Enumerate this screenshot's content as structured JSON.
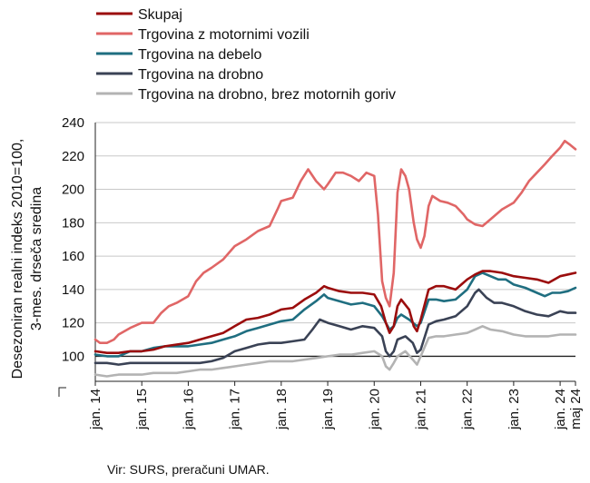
{
  "chart_data": {
    "type": "line",
    "ylabel_lines": [
      "Desezoniran realni indeks 2010=100,",
      "3-mes. drseča sredina"
    ],
    "ylim": [
      85,
      240
    ],
    "yticks": [
      100,
      120,
      140,
      160,
      180,
      200,
      220,
      240
    ],
    "xlim": [
      2014,
      2024.33
    ],
    "xticks": [
      {
        "x": 2014,
        "label": "jan. 14"
      },
      {
        "x": 2015,
        "label": "jan. 15"
      },
      {
        "x": 2016,
        "label": "jan. 16"
      },
      {
        "x": 2017,
        "label": "jan. 17"
      },
      {
        "x": 2018,
        "label": "jan. 18"
      },
      {
        "x": 2019,
        "label": "jan. 19"
      },
      {
        "x": 2020,
        "label": "jan. 20"
      },
      {
        "x": 2021,
        "label": "jan. 21"
      },
      {
        "x": 2022,
        "label": "jan. 22"
      },
      {
        "x": 2023,
        "label": "jan. 23"
      },
      {
        "x": 2024,
        "label": "jan. 24"
      },
      {
        "x": 2024.33,
        "label": "maj 24"
      }
    ],
    "grid": "horizontal",
    "reference_line": 100,
    "legend_position": "top-left",
    "source": "Vir: SURS, preračuni UMAR.",
    "series": [
      {
        "name": "Skupaj",
        "color": "#9b0d0d",
        "points": [
          [
            2014.0,
            103
          ],
          [
            2014.25,
            102
          ],
          [
            2014.5,
            102
          ],
          [
            2014.75,
            103
          ],
          [
            2015.0,
            103
          ],
          [
            2015.25,
            104
          ],
          [
            2015.5,
            106
          ],
          [
            2015.75,
            107
          ],
          [
            2016.0,
            108
          ],
          [
            2016.25,
            110
          ],
          [
            2016.5,
            112
          ],
          [
            2016.75,
            114
          ],
          [
            2017.0,
            118
          ],
          [
            2017.25,
            122
          ],
          [
            2017.5,
            123
          ],
          [
            2017.75,
            125
          ],
          [
            2018.0,
            128
          ],
          [
            2018.25,
            129
          ],
          [
            2018.5,
            134
          ],
          [
            2018.75,
            138
          ],
          [
            2018.92,
            142
          ],
          [
            2019.0,
            141
          ],
          [
            2019.25,
            139
          ],
          [
            2019.5,
            138
          ],
          [
            2019.75,
            138
          ],
          [
            2020.0,
            137
          ],
          [
            2020.15,
            130
          ],
          [
            2020.25,
            120
          ],
          [
            2020.33,
            114
          ],
          [
            2020.42,
            118
          ],
          [
            2020.5,
            130
          ],
          [
            2020.58,
            134
          ],
          [
            2020.75,
            128
          ],
          [
            2020.85,
            118
          ],
          [
            2020.92,
            115
          ],
          [
            2021.0,
            122
          ],
          [
            2021.17,
            140
          ],
          [
            2021.33,
            142
          ],
          [
            2021.5,
            142
          ],
          [
            2021.75,
            140
          ],
          [
            2022.0,
            146
          ],
          [
            2022.17,
            149
          ],
          [
            2022.33,
            151
          ],
          [
            2022.5,
            151
          ],
          [
            2022.75,
            150
          ],
          [
            2023.0,
            148
          ],
          [
            2023.25,
            147
          ],
          [
            2023.5,
            146
          ],
          [
            2023.75,
            144
          ],
          [
            2024.0,
            148
          ],
          [
            2024.17,
            149
          ],
          [
            2024.33,
            150
          ]
        ]
      },
      {
        "name": "Trgovina z motornimi vozili",
        "color": "#e06666",
        "points": [
          [
            2014.0,
            110
          ],
          [
            2014.1,
            108
          ],
          [
            2014.25,
            108
          ],
          [
            2014.4,
            110
          ],
          [
            2014.5,
            113
          ],
          [
            2014.75,
            117
          ],
          [
            2015.0,
            120
          ],
          [
            2015.25,
            120
          ],
          [
            2015.42,
            126
          ],
          [
            2015.58,
            130
          ],
          [
            2015.75,
            132
          ],
          [
            2016.0,
            136
          ],
          [
            2016.17,
            145
          ],
          [
            2016.33,
            150
          ],
          [
            2016.5,
            153
          ],
          [
            2016.75,
            158
          ],
          [
            2017.0,
            166
          ],
          [
            2017.25,
            170
          ],
          [
            2017.5,
            175
          ],
          [
            2017.75,
            178
          ],
          [
            2017.92,
            188
          ],
          [
            2018.0,
            193
          ],
          [
            2018.25,
            195
          ],
          [
            2018.42,
            205
          ],
          [
            2018.58,
            212
          ],
          [
            2018.75,
            205
          ],
          [
            2018.92,
            200
          ],
          [
            2019.0,
            203
          ],
          [
            2019.17,
            210
          ],
          [
            2019.33,
            210
          ],
          [
            2019.5,
            208
          ],
          [
            2019.67,
            205
          ],
          [
            2019.83,
            210
          ],
          [
            2020.0,
            208
          ],
          [
            2020.08,
            185
          ],
          [
            2020.17,
            145
          ],
          [
            2020.25,
            135
          ],
          [
            2020.33,
            130
          ],
          [
            2020.42,
            150
          ],
          [
            2020.5,
            198
          ],
          [
            2020.58,
            212
          ],
          [
            2020.67,
            208
          ],
          [
            2020.75,
            200
          ],
          [
            2020.85,
            180
          ],
          [
            2020.92,
            170
          ],
          [
            2021.0,
            165
          ],
          [
            2021.08,
            172
          ],
          [
            2021.17,
            190
          ],
          [
            2021.25,
            196
          ],
          [
            2021.42,
            193
          ],
          [
            2021.58,
            192
          ],
          [
            2021.75,
            190
          ],
          [
            2021.92,
            185
          ],
          [
            2022.0,
            182
          ],
          [
            2022.17,
            179
          ],
          [
            2022.33,
            178
          ],
          [
            2022.5,
            182
          ],
          [
            2022.75,
            188
          ],
          [
            2023.0,
            192
          ],
          [
            2023.17,
            198
          ],
          [
            2023.33,
            205
          ],
          [
            2023.5,
            210
          ],
          [
            2023.67,
            215
          ],
          [
            2023.83,
            220
          ],
          [
            2024.0,
            225
          ],
          [
            2024.1,
            229
          ],
          [
            2024.2,
            227
          ],
          [
            2024.33,
            224
          ]
        ]
      },
      {
        "name": "Trgovina na debelo",
        "color": "#1f6e80",
        "points": [
          [
            2014.0,
            101
          ],
          [
            2014.25,
            100
          ],
          [
            2014.5,
            100
          ],
          [
            2014.75,
            103
          ],
          [
            2015.0,
            103
          ],
          [
            2015.25,
            105
          ],
          [
            2015.5,
            106
          ],
          [
            2015.75,
            106
          ],
          [
            2016.0,
            106
          ],
          [
            2016.25,
            107
          ],
          [
            2016.5,
            108
          ],
          [
            2016.75,
            110
          ],
          [
            2017.0,
            112
          ],
          [
            2017.25,
            115
          ],
          [
            2017.5,
            117
          ],
          [
            2017.75,
            119
          ],
          [
            2018.0,
            121
          ],
          [
            2018.25,
            122
          ],
          [
            2018.5,
            128
          ],
          [
            2018.75,
            133
          ],
          [
            2018.92,
            137
          ],
          [
            2019.0,
            135
          ],
          [
            2019.25,
            133
          ],
          [
            2019.5,
            131
          ],
          [
            2019.75,
            132
          ],
          [
            2020.0,
            130
          ],
          [
            2020.17,
            124
          ],
          [
            2020.33,
            116
          ],
          [
            2020.42,
            118
          ],
          [
            2020.5,
            123
          ],
          [
            2020.58,
            125
          ],
          [
            2020.75,
            122
          ],
          [
            2020.92,
            118
          ],
          [
            2021.0,
            120
          ],
          [
            2021.17,
            134
          ],
          [
            2021.33,
            134
          ],
          [
            2021.5,
            133
          ],
          [
            2021.75,
            134
          ],
          [
            2022.0,
            140
          ],
          [
            2022.17,
            148
          ],
          [
            2022.33,
            150
          ],
          [
            2022.5,
            148
          ],
          [
            2022.67,
            146
          ],
          [
            2022.83,
            146
          ],
          [
            2023.0,
            143
          ],
          [
            2023.25,
            141
          ],
          [
            2023.5,
            138
          ],
          [
            2023.67,
            136
          ],
          [
            2023.83,
            138
          ],
          [
            2024.0,
            138
          ],
          [
            2024.17,
            139
          ],
          [
            2024.33,
            141
          ]
        ]
      },
      {
        "name": "Trgovina na drobno",
        "color": "#3a4255",
        "points": [
          [
            2014.0,
            96
          ],
          [
            2014.25,
            96
          ],
          [
            2014.5,
            95
          ],
          [
            2014.75,
            96
          ],
          [
            2015.0,
            96
          ],
          [
            2015.25,
            96
          ],
          [
            2015.5,
            96
          ],
          [
            2015.75,
            96
          ],
          [
            2016.0,
            96
          ],
          [
            2016.25,
            96
          ],
          [
            2016.5,
            97
          ],
          [
            2016.75,
            99
          ],
          [
            2017.0,
            103
          ],
          [
            2017.25,
            105
          ],
          [
            2017.5,
            107
          ],
          [
            2017.75,
            108
          ],
          [
            2018.0,
            108
          ],
          [
            2018.25,
            109
          ],
          [
            2018.5,
            110
          ],
          [
            2018.67,
            116
          ],
          [
            2018.83,
            122
          ],
          [
            2019.0,
            120
          ],
          [
            2019.25,
            118
          ],
          [
            2019.5,
            116
          ],
          [
            2019.75,
            118
          ],
          [
            2020.0,
            117
          ],
          [
            2020.17,
            112
          ],
          [
            2020.25,
            103
          ],
          [
            2020.33,
            100
          ],
          [
            2020.42,
            103
          ],
          [
            2020.5,
            110
          ],
          [
            2020.67,
            112
          ],
          [
            2020.83,
            108
          ],
          [
            2020.92,
            102
          ],
          [
            2021.0,
            104
          ],
          [
            2021.17,
            119
          ],
          [
            2021.33,
            121
          ],
          [
            2021.5,
            122
          ],
          [
            2021.75,
            124
          ],
          [
            2022.0,
            130
          ],
          [
            2022.17,
            138
          ],
          [
            2022.25,
            140
          ],
          [
            2022.42,
            135
          ],
          [
            2022.58,
            132
          ],
          [
            2022.75,
            132
          ],
          [
            2023.0,
            130
          ],
          [
            2023.25,
            127
          ],
          [
            2023.5,
            125
          ],
          [
            2023.75,
            124
          ],
          [
            2024.0,
            127
          ],
          [
            2024.17,
            126
          ],
          [
            2024.33,
            126
          ]
        ]
      },
      {
        "name": "Trgovina na drobno, brez motornih goriv",
        "color": "#b3b3b3",
        "points": [
          [
            2014.0,
            89
          ],
          [
            2014.25,
            88
          ],
          [
            2014.5,
            89
          ],
          [
            2014.75,
            89
          ],
          [
            2015.0,
            89
          ],
          [
            2015.25,
            90
          ],
          [
            2015.5,
            90
          ],
          [
            2015.75,
            90
          ],
          [
            2016.0,
            91
          ],
          [
            2016.25,
            92
          ],
          [
            2016.5,
            92
          ],
          [
            2016.75,
            93
          ],
          [
            2017.0,
            94
          ],
          [
            2017.25,
            95
          ],
          [
            2017.5,
            96
          ],
          [
            2017.75,
            97
          ],
          [
            2018.0,
            97
          ],
          [
            2018.25,
            97
          ],
          [
            2018.5,
            98
          ],
          [
            2018.75,
            99
          ],
          [
            2019.0,
            100
          ],
          [
            2019.25,
            101
          ],
          [
            2019.5,
            101
          ],
          [
            2019.75,
            102
          ],
          [
            2020.0,
            103
          ],
          [
            2020.17,
            100
          ],
          [
            2020.25,
            94
          ],
          [
            2020.33,
            92
          ],
          [
            2020.42,
            96
          ],
          [
            2020.5,
            100
          ],
          [
            2020.67,
            103
          ],
          [
            2020.83,
            98
          ],
          [
            2020.92,
            95
          ],
          [
            2021.0,
            100
          ],
          [
            2021.17,
            111
          ],
          [
            2021.33,
            112
          ],
          [
            2021.5,
            112
          ],
          [
            2021.75,
            113
          ],
          [
            2022.0,
            114
          ],
          [
            2022.17,
            116
          ],
          [
            2022.33,
            118
          ],
          [
            2022.5,
            116
          ],
          [
            2022.75,
            115
          ],
          [
            2023.0,
            113
          ],
          [
            2023.25,
            112
          ],
          [
            2023.5,
            112
          ],
          [
            2023.75,
            112
          ],
          [
            2024.0,
            113
          ],
          [
            2024.17,
            113
          ],
          [
            2024.33,
            113
          ]
        ]
      }
    ]
  }
}
